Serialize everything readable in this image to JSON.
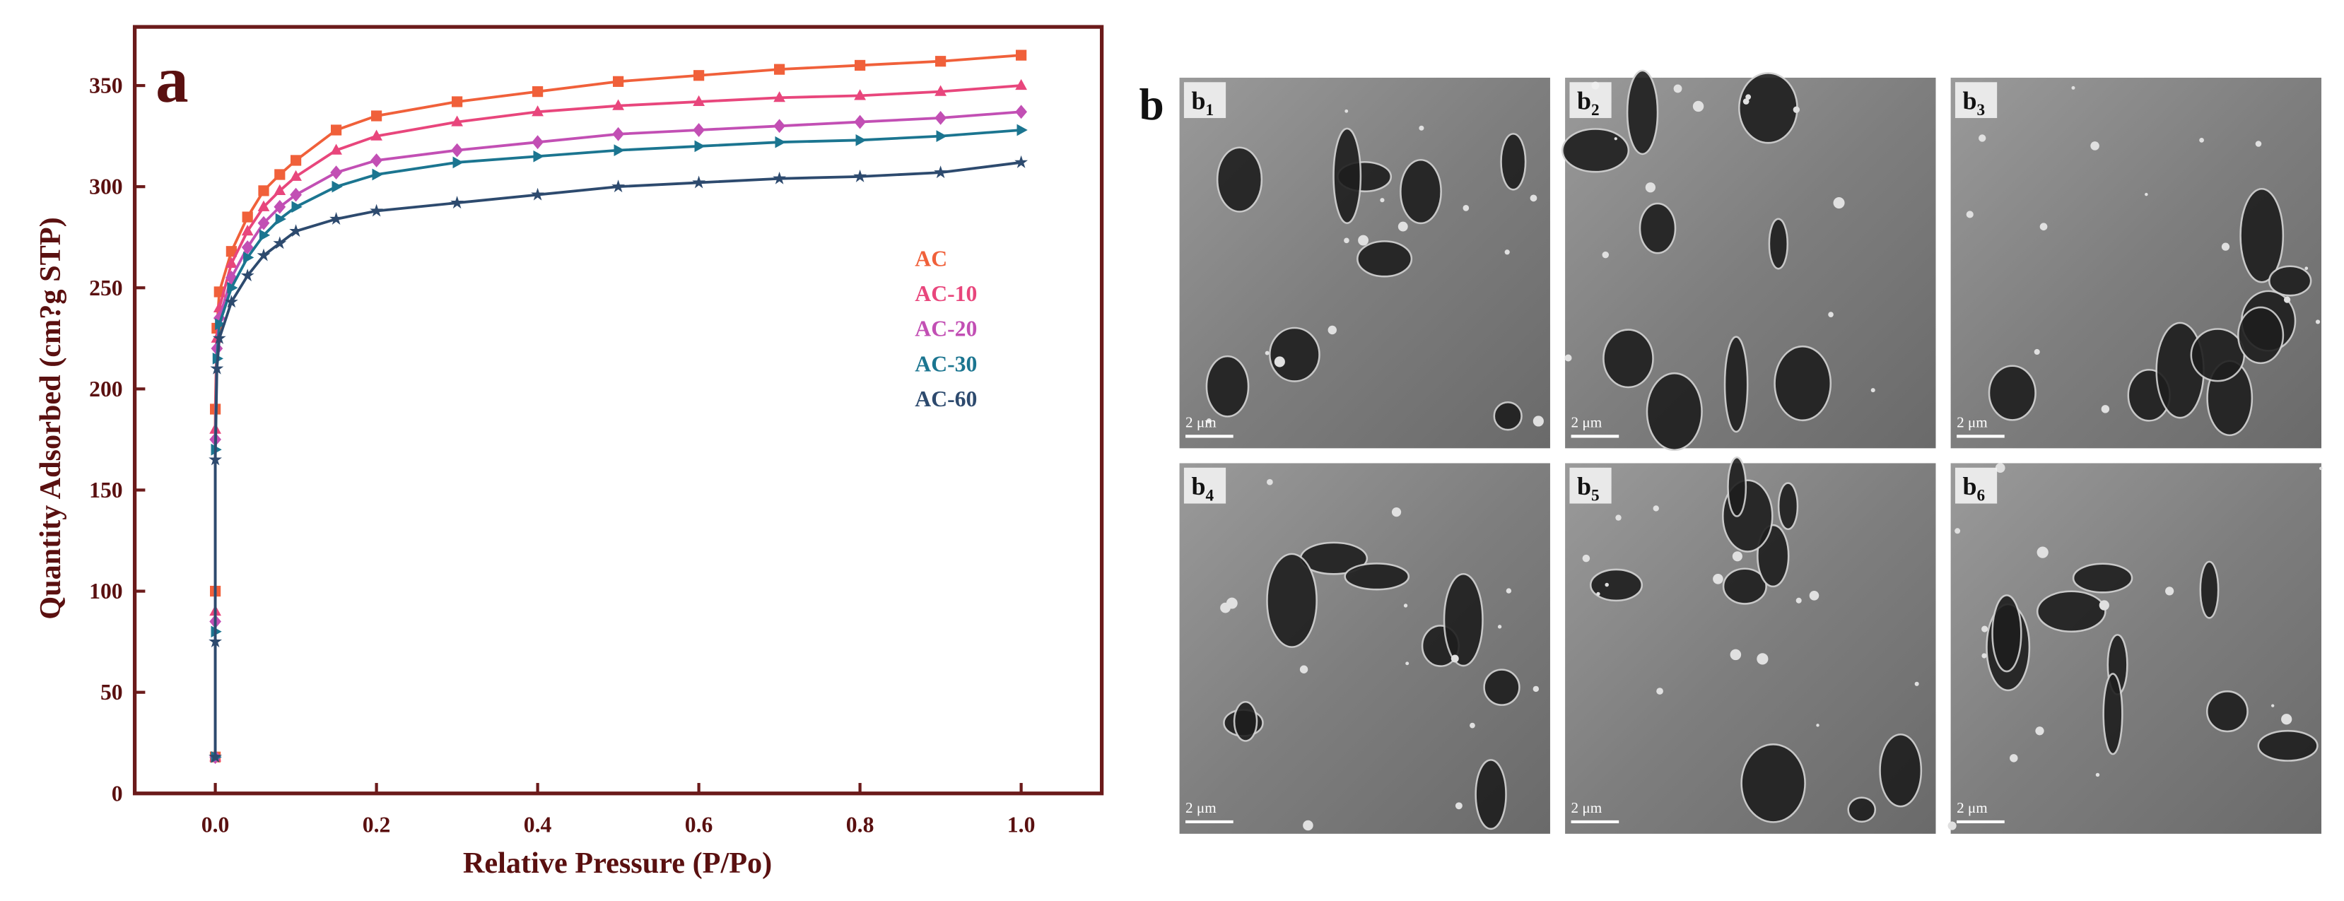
{
  "chart_data": {
    "type": "line",
    "panel_label": "a",
    "xlabel": "Relative Pressure (P/Po)",
    "ylabel": "Quantity Adsorbed (cm?g STP)",
    "x": [
      0,
      0,
      0,
      0.002,
      0.005,
      0.02,
      0.04,
      0.06,
      0.08,
      0.1,
      0.15,
      0.2,
      0.3,
      0.4,
      0.5,
      0.6,
      0.7,
      0.8,
      0.9,
      1.0
    ],
    "series": [
      {
        "name": "AC",
        "color": "#f0603a",
        "marker": "square",
        "values": [
          18,
          100,
          190,
          230,
          248,
          268,
          285,
          298,
          306,
          313,
          328,
          335,
          342,
          347,
          352,
          355,
          358,
          360,
          362,
          365
        ]
      },
      {
        "name": "AC-10",
        "color": "#e8467c",
        "marker": "triangle",
        "values": [
          18,
          90,
          180,
          225,
          240,
          262,
          278,
          290,
          298,
          305,
          318,
          325,
          332,
          337,
          340,
          342,
          344,
          345,
          347,
          350
        ]
      },
      {
        "name": "AC-20",
        "color": "#c24fb4",
        "marker": "diamond",
        "values": [
          18,
          85,
          175,
          220,
          235,
          255,
          270,
          282,
          290,
          296,
          307,
          313,
          318,
          322,
          326,
          328,
          330,
          332,
          334,
          337
        ]
      },
      {
        "name": "AC-30",
        "color": "#1b7590",
        "marker": "right-triangle",
        "values": [
          18,
          80,
          170,
          215,
          232,
          250,
          265,
          276,
          284,
          290,
          300,
          306,
          312,
          315,
          318,
          320,
          322,
          323,
          325,
          328
        ]
      },
      {
        "name": "AC-60",
        "color": "#2d4a6e",
        "marker": "star",
        "values": [
          18,
          75,
          165,
          210,
          225,
          243,
          256,
          266,
          272,
          278,
          284,
          288,
          292,
          296,
          300,
          302,
          304,
          305,
          307,
          312
        ]
      }
    ],
    "xlim": [
      -0.1,
      1.1
    ],
    "ylim": [
      0,
      379
    ],
    "xticks": [
      {
        "value": 0,
        "label": "0.0"
      },
      0.2,
      0.4,
      0.6,
      0.8,
      {
        "value": 1,
        "label": "1.0"
      }
    ],
    "yticks": [
      0,
      50,
      100,
      150,
      200,
      250,
      300,
      350
    ],
    "legend": "right"
  },
  "figure_b": {
    "label": "b",
    "panels": [
      {
        "label": "b",
        "sub": "1",
        "scale": "2 μm"
      },
      {
        "label": "b",
        "sub": "2",
        "scale": "2 μm"
      },
      {
        "label": "b",
        "sub": "3",
        "scale": "2 μm"
      },
      {
        "label": "b",
        "sub": "4",
        "scale": "2 μm"
      },
      {
        "label": "b",
        "sub": "5",
        "scale": "2 μm"
      },
      {
        "label": "b",
        "sub": "6",
        "scale": "2 μm"
      }
    ]
  }
}
